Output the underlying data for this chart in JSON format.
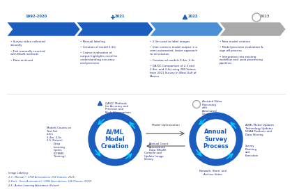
{
  "bg_color": "#ffffff",
  "years": [
    "1992-2020",
    "2021",
    "2022",
    "2023"
  ],
  "arrow_colors": [
    "#1a5dbf",
    "#1a5dbf",
    "#4a8fd4",
    "#aaaaaa"
  ],
  "bullet_sections": [
    {
      "items": [
        "Survey video collected\nannually",
        "Fish manually counted\nwith MaxN methods",
        "Data archived"
      ]
    },
    {
      "items": [
        "Manual labeling",
        "Creation of model 2.3m",
        "Coarse evaluation of\noutput highlights need for\nunderstanding accuracy\nand precision"
      ]
    },
    {
      "items": [
        "2.3m used to label images",
        "User corrects model output in a\nsemi-automated, faster approach\nto annotation",
        "Creation of models 2.4m, 2.4s",
        "QA/QC Comparison of 2.3 and\n2.4m, and 2.4s using 280 Videos\nfrom 2021 Survey in West Gulf of\nMexico"
      ]
    },
    {
      "items": [
        "New model creation",
        "Model precision evaluation &\nsign off process",
        "Integration into existing\nworkflow and  post-processing\npipelines"
      ]
    }
  ],
  "text_color": "#1a237e",
  "left_circle_text": "AI/ML\nModel\nCreation",
  "right_circle_text": "Annual\nSurvey\nProcess",
  "circle_text_color": "#1a5dbf",
  "ring_color": "#1a5dbf",
  "cyan_color": "#00ccff",
  "lc_labels": {
    "top_marker_label": "QA/QC Methods\nfor Accuracy and\nPrecision and\nModel Comparison",
    "left_top": "Models Counts on\nTest Set\n2.3m\n2.4m, 2.4s\n2.5 (Future)",
    "left_bottom": "Deep\nLearning\nCycles\n(CFRNN\nTraining)",
    "bottom_right": "Compile and\nUpdate Image\nLibrary",
    "bottom_text": "Image Labeling:\n2.3 - Manual (~170K Annotations, 154 Classes, 2021)\n2.4m/s - Semi Automated (~600k Annotations, 146 Classes, 2022)\n2.5 - Active Learning Assistance (Future)"
  },
  "rc_labels": {
    "top_label": "Assisted Video\nProcessing\nwith\nAutomated\nCounts",
    "top_right": "AI/ML Model Updates\nTechnology Updates\nNOAA Products and\nData Sharing",
    "right": "Survey\nPlanning\nand\nExecution",
    "bottom": "Network, Store, and\nArchive Video",
    "bottom_left": "Manual Count\nGroundtruth\nData (MaxN)"
  },
  "middle_text": "Model Optimization"
}
